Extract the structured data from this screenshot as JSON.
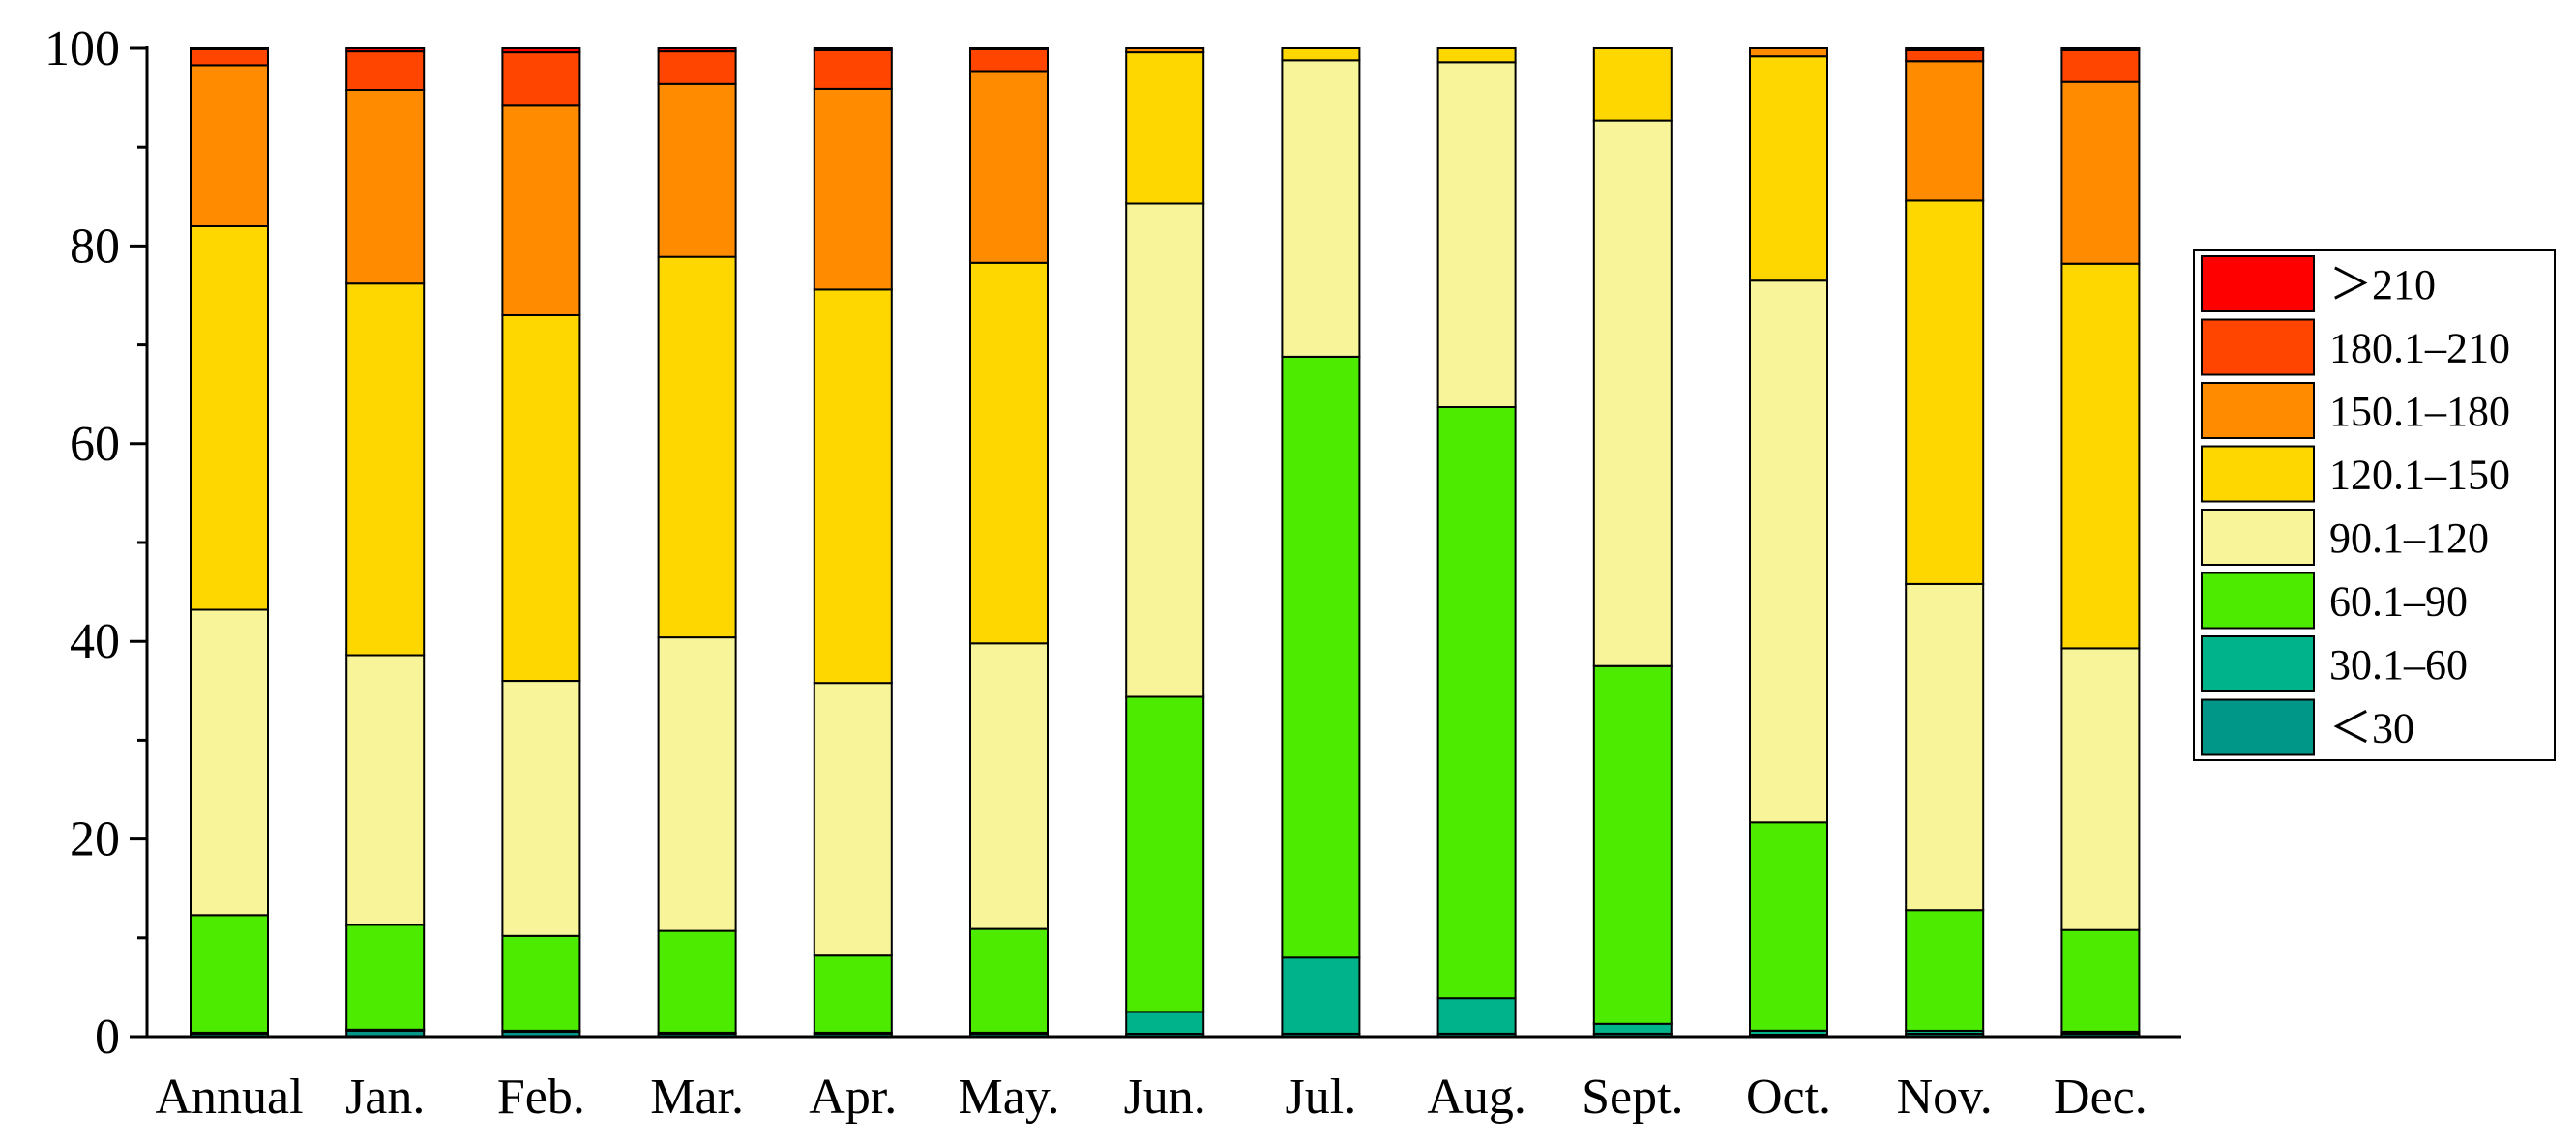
{
  "chart_data": {
    "type": "bar",
    "stacked": true,
    "title": "",
    "xlabel": "",
    "ylabel": "",
    "ylim": [
      0,
      100
    ],
    "yticks": [
      "0",
      "20",
      "40",
      "60",
      "80",
      "100"
    ],
    "categories": [
      "Annual",
      "Jan.",
      "Feb.",
      "Mar.",
      "Apr.",
      "May.",
      "Jun.",
      "Jul.",
      "Aug.",
      "Sept.",
      "Oct.",
      "Nov.",
      "Dec."
    ],
    "legend_position": "right",
    "grid": false,
    "series": [
      {
        "name": "<30",
        "color": "#009688",
        "values": [
          0.3,
          0.6,
          0.5,
          0.3,
          0.3,
          0.3,
          0.3,
          0.3,
          0.3,
          0.3,
          0.2,
          0.3,
          0.3
        ]
      },
      {
        "name": "30.1–60",
        "color": "#00B38A",
        "values": [
          0.1,
          0.1,
          0.1,
          0.1,
          0.1,
          0.1,
          2.2,
          7.7,
          3.6,
          1.0,
          0.4,
          0.3,
          0.2
        ]
      },
      {
        "name": "60.1–90",
        "color": "#4CEB00",
        "values": [
          11.9,
          10.6,
          9.6,
          10.3,
          7.8,
          10.5,
          31.9,
          60.8,
          59.8,
          36.2,
          21.1,
          12.2,
          10.3
        ]
      },
      {
        "name": "90.1–120",
        "color": "#F7F49A",
        "values": [
          30.9,
          27.3,
          25.8,
          29.7,
          27.6,
          28.9,
          49.9,
          30.0,
          34.9,
          55.2,
          54.8,
          33.0,
          28.5
        ]
      },
      {
        "name": "120.1–150",
        "color": "#FFD700",
        "values": [
          38.8,
          37.6,
          37.0,
          38.5,
          39.8,
          38.5,
          15.3,
          1.2,
          1.4,
          7.3,
          22.7,
          38.8,
          38.9
        ]
      },
      {
        "name": "150.1–180",
        "color": "#FF8C00",
        "values": [
          16.3,
          19.6,
          21.2,
          17.5,
          20.3,
          19.4,
          0.4,
          0,
          0,
          0,
          0.8,
          14.1,
          18.4
        ]
      },
      {
        "name": "180.1–210",
        "color": "#FF4500",
        "values": [
          1.6,
          3.9,
          5.4,
          3.3,
          3.9,
          2.2,
          0,
          0,
          0,
          0,
          0,
          1.1,
          3.2
        ]
      },
      {
        "name": ">210",
        "color": "#FF0000",
        "values": [
          0.1,
          0.3,
          0.4,
          0.3,
          0.2,
          0.1,
          0,
          0,
          0,
          0,
          0,
          0.2,
          0.2
        ]
      }
    ],
    "legend_labels": [
      "＞210",
      "180.1–210",
      "150.1–180",
      "120.1–150",
      "90.1–120",
      "60.1–90",
      "30.1–60",
      "＜30"
    ]
  }
}
